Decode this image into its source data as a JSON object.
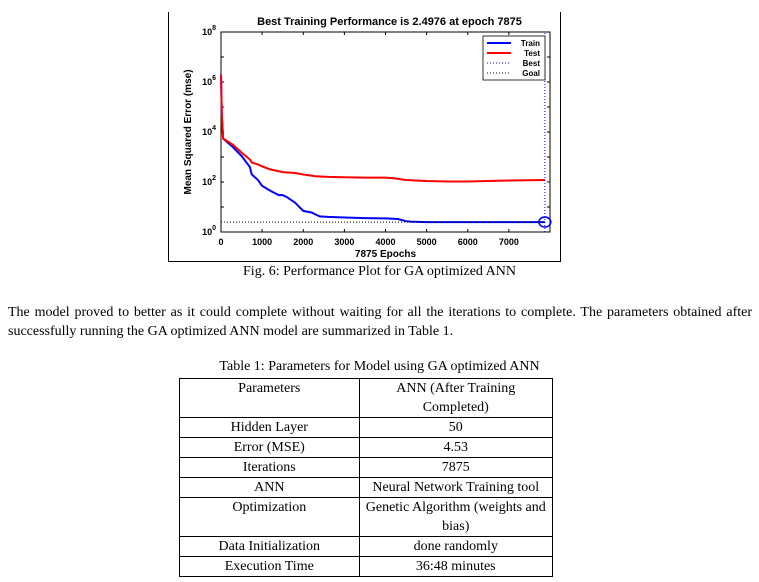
{
  "figure": {
    "caption": "Fig. 6: Performance Plot for GA optimized ANN",
    "chart_data": {
      "type": "line",
      "title": "Best Training Performance is 2.4976 at epoch 7875",
      "xlabel": "7875 Epochs",
      "ylabel": "Mean Squared Error  (mse)",
      "y_scale": "log",
      "xlim": [
        0,
        7875
      ],
      "ylim": [
        1,
        100000000
      ],
      "x_ticks": [
        "0",
        "1000",
        "2000",
        "3000",
        "4000",
        "5000",
        "6000",
        "7000"
      ],
      "y_ticks": [
        "10^0",
        "10^2",
        "10^4",
        "10^6",
        "10^8"
      ],
      "legend_position": "top-right",
      "series": [
        {
          "name": "Train",
          "color": "#0000ff",
          "x": [
            0,
            20,
            50,
            300,
            500,
            700,
            750,
            900,
            1000,
            1200,
            1400,
            1500,
            1600,
            1800,
            2000,
            2200,
            2300,
            2400,
            2600,
            3000,
            3500,
            4000,
            4300,
            4500,
            4600,
            5000,
            5500,
            6000,
            6500,
            7000,
            7875
          ],
          "y": [
            2000000,
            50000,
            5500,
            2400,
            1100,
            400,
            200,
            120,
            70,
            45,
            30,
            30,
            25,
            15,
            7,
            6,
            5,
            4.2,
            4.0,
            3.8,
            3.6,
            3.5,
            3.3,
            2.7,
            2.6,
            2.5,
            2.5,
            2.5,
            2.5,
            2.5,
            2.5
          ]
        },
        {
          "name": "Test",
          "color": "#ff0000",
          "x": [
            0,
            20,
            50,
            300,
            500,
            700,
            750,
            900,
            1000,
            1200,
            1500,
            1800,
            2000,
            2300,
            2600,
            3000,
            3500,
            4000,
            4200,
            4500,
            5000,
            5500,
            6000,
            6500,
            7000,
            7875
          ],
          "y": [
            2000000,
            50000,
            5500,
            3000,
            1500,
            800,
            600,
            500,
            420,
            320,
            250,
            230,
            200,
            170,
            160,
            155,
            150,
            150,
            140,
            120,
            110,
            105,
            105,
            110,
            115,
            120
          ]
        },
        {
          "name": "Best",
          "color": "#0000ff",
          "style": "dotted",
          "x": [
            7875,
            7875
          ],
          "y": [
            1,
            100000000
          ]
        },
        {
          "name": "Goal",
          "color": "#000000",
          "style": "dotted",
          "x": [
            0,
            7875
          ],
          "y": [
            2.5,
            2.5
          ]
        }
      ],
      "marker": {
        "x": 7875,
        "y": 2.5
      }
    }
  },
  "paragraph": "The model proved to better as it could complete without waiting for all the iterations to complete. The parameters obtained after successfully running the GA optimized ANN model are summarized in Table 1.",
  "table": {
    "caption": "Table 1: Parameters for Model using GA optimized ANN",
    "header": [
      "Parameters",
      "ANN (After Training Completed)"
    ],
    "rows": [
      [
        "Hidden Layer",
        "50"
      ],
      [
        "Error (MSE)",
        "4.53"
      ],
      [
        "Iterations",
        "7875"
      ],
      [
        "ANN",
        "Neural Network Training tool"
      ],
      [
        "Optimization",
        "Genetic Algorithm (weights and bias)"
      ],
      [
        "Data Initialization",
        "done randomly"
      ],
      [
        "Execution Time",
        "36:48 minutes"
      ]
    ]
  }
}
